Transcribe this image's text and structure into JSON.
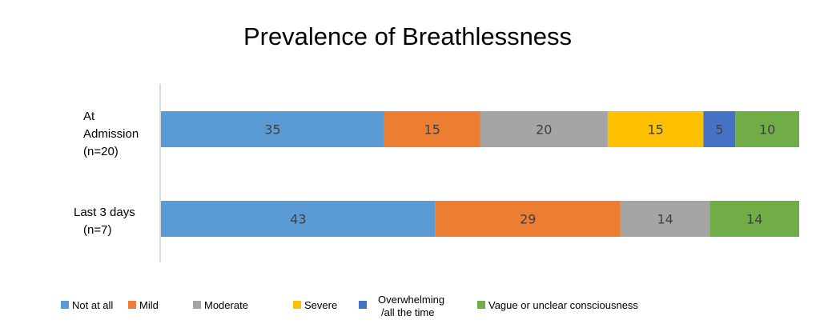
{
  "chart_data": {
    "type": "bar",
    "orientation": "horizontal",
    "stacked": true,
    "title": "Prevalence of Breathlessness",
    "categories": [
      [
        "At",
        "Admission",
        "(n=20)"
      ],
      [
        "Last 3 days",
        "(n=7)"
      ]
    ],
    "series": [
      {
        "name": "Not at all",
        "color": "#5b9bd5",
        "values": [
          35,
          43
        ]
      },
      {
        "name": "Mild",
        "color": "#ed7d31",
        "values": [
          15,
          29
        ]
      },
      {
        "name": "Moderate",
        "color": "#a5a5a5",
        "values": [
          20,
          14
        ]
      },
      {
        "name": "Severe",
        "color": "#ffc000",
        "values": [
          15,
          0
        ]
      },
      {
        "name": "Overwhelming /all the time",
        "legend_lines": [
          "Overwhelming",
          "/all the time"
        ],
        "color": "#4472c4",
        "values": [
          5,
          0
        ]
      },
      {
        "name": "Vague or unclear consciousness",
        "color": "#70ad47",
        "values": [
          10,
          14
        ]
      }
    ],
    "xlim": [
      0,
      100
    ],
    "grid": false,
    "data_labels": true,
    "legend": "bottom"
  }
}
